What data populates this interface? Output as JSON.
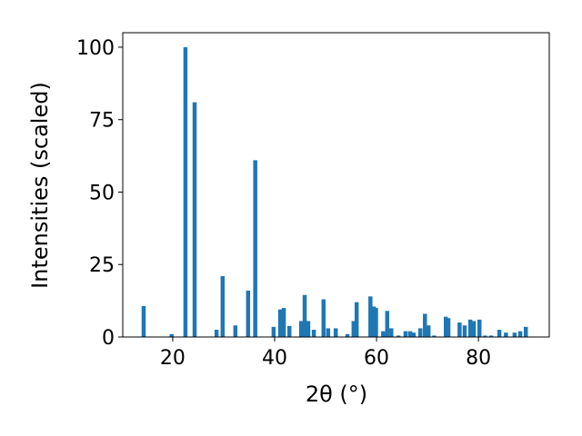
{
  "chart_data": {
    "type": "bar",
    "xlabel": "2θ (°)",
    "ylabel": "Intensities (scaled)",
    "color": "#1f77b4",
    "x": [
      14.3,
      19.8,
      22.5,
      24.3,
      28.6,
      29.8,
      32.3,
      34.8,
      36.2,
      39.8,
      41.1,
      41.8,
      42.9,
      45.2,
      45.9,
      46.6,
      47.7,
      49.6,
      50.5,
      52.0,
      54.3,
      55.5,
      56.1,
      58.8,
      59.5,
      59.9,
      61.3,
      62.1,
      62.9,
      64.3,
      65.7,
      66.6,
      67.3,
      68.6,
      69.5,
      70.2,
      71.3,
      73.6,
      74.1,
      76.3,
      77.3,
      78.4,
      79.1,
      80.2,
      81.3,
      82.5,
      84.1,
      85.4,
      87.1,
      88.2,
      89.3
    ],
    "values": [
      10.7,
      1,
      100,
      81,
      2.5,
      21,
      4,
      16,
      61,
      3.5,
      9.5,
      10,
      3.8,
      5.5,
      14.5,
      5.5,
      2.5,
      13,
      3,
      3,
      1,
      5.5,
      12,
      14,
      10.5,
      10,
      2,
      9,
      3,
      0.5,
      2,
      2,
      1.5,
      3,
      8,
      4,
      0.5,
      7,
      6.5,
      5,
      4,
      6,
      5.5,
      6,
      0.5,
      0.5,
      2.5,
      1.5,
      1.5,
      2,
      3.5
    ],
    "xlim": [
      10.2,
      93.9
    ],
    "xticks": [
      20,
      40,
      60,
      80
    ],
    "ylim": [
      0,
      105
    ],
    "yticks": [
      0,
      25,
      50,
      75,
      100
    ]
  }
}
